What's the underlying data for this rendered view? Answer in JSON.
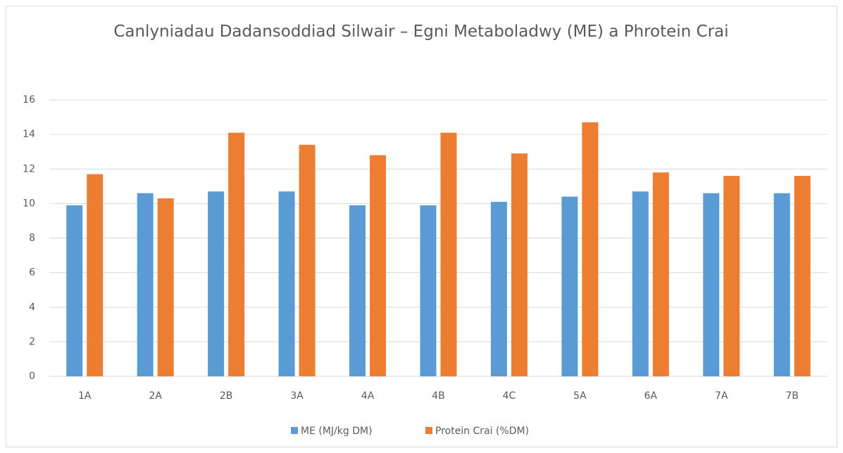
{
  "chart_data": {
    "type": "bar",
    "title": "Canlyniadau Dadansoddiad Silwair – Egni Metaboladwy (ME) a Phrotein Crai",
    "categories": [
      "1A",
      "2A",
      "2B",
      "3A",
      "4A",
      "4B",
      "4C",
      "5A",
      "6A",
      "7A",
      "7B"
    ],
    "series": [
      {
        "name": "ME (MJ/kg DM)",
        "color": "#5b9bd5",
        "values": [
          9.9,
          10.6,
          10.7,
          10.7,
          9.9,
          9.9,
          10.1,
          10.4,
          10.7,
          10.6,
          10.6
        ]
      },
      {
        "name": "Protein Crai (%DM)",
        "color": "#ed7d31",
        "values": [
          11.7,
          10.3,
          14.1,
          13.4,
          12.8,
          14.1,
          12.9,
          14.7,
          11.8,
          11.6,
          11.6
        ]
      }
    ],
    "ylim": [
      0,
      16
    ],
    "yticks": [
      0,
      2,
      4,
      6,
      8,
      10,
      12,
      14,
      16
    ],
    "grid": true,
    "legend": "bottom"
  }
}
